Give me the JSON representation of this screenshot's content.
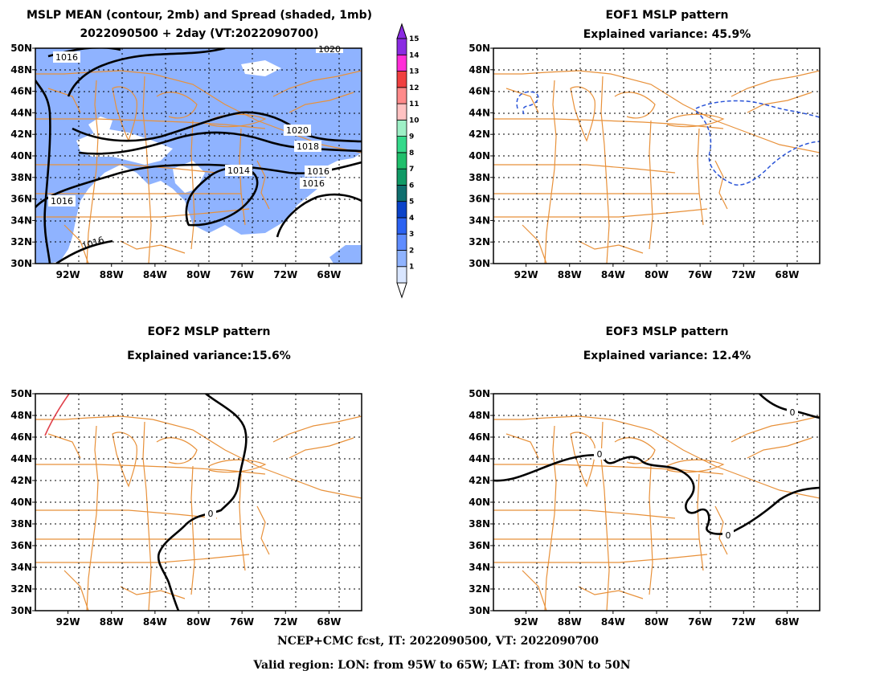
{
  "panels": [
    {
      "id": "mean",
      "title_line1": "MSLP MEAN (contour, 2mb) and Spread (shaded, 1mb)",
      "title_line2": "2022090500 + 2day (VT:2022090700)",
      "contour_labels": [
        "1016",
        "1020",
        "1020",
        "1018",
        "1016",
        "1016",
        "1014",
        "1016",
        "1016"
      ]
    },
    {
      "id": "eof1",
      "title_line1": "EOF1 MSLP pattern",
      "title_line2": "Explained variance: 45.9%"
    },
    {
      "id": "eof2",
      "title_line1": "EOF2 MSLP pattern",
      "title_line2": "Explained variance:15.6%",
      "contour_labels": [
        "0"
      ]
    },
    {
      "id": "eof3",
      "title_line1": "EOF3 MSLP pattern",
      "title_line2": "Explained variance: 12.4%",
      "contour_labels": [
        "0",
        "0",
        "0"
      ]
    }
  ],
  "map": {
    "lon_range": [
      -95,
      -65
    ],
    "lat_range": [
      30,
      50
    ],
    "lat_ticks": [
      "30N",
      "32N",
      "34N",
      "36N",
      "38N",
      "40N",
      "42N",
      "44N",
      "46N",
      "48N",
      "50N"
    ],
    "lon_ticks": [
      "92W",
      "88W",
      "84W",
      "80W",
      "76W",
      "72W",
      "68W"
    ],
    "gridlines": "dotted",
    "boundary_color": "#e8913a"
  },
  "colorbar": {
    "labels": [
      "1",
      "2",
      "3",
      "4",
      "5",
      "6",
      "7",
      "8",
      "9",
      "10",
      "11",
      "12",
      "13",
      "14",
      "15"
    ],
    "colors": [
      "#d9e6ff",
      "#8fb3ff",
      "#5f8cff",
      "#2b62f2",
      "#0a42c9",
      "#0f6e6e",
      "#109a66",
      "#1fbf6b",
      "#34d98a",
      "#9ef0c6",
      "#ffc2c2",
      "#ff8a8a",
      "#f04040",
      "#ff2dd8",
      "#8a2be2"
    ]
  },
  "footer": {
    "line1": "NCEP+CMC fcst, IT: 2022090500, VT: 2022090700",
    "line2": "Valid region: LON: from 95W to 65W; LAT: from 30N to 50N"
  }
}
